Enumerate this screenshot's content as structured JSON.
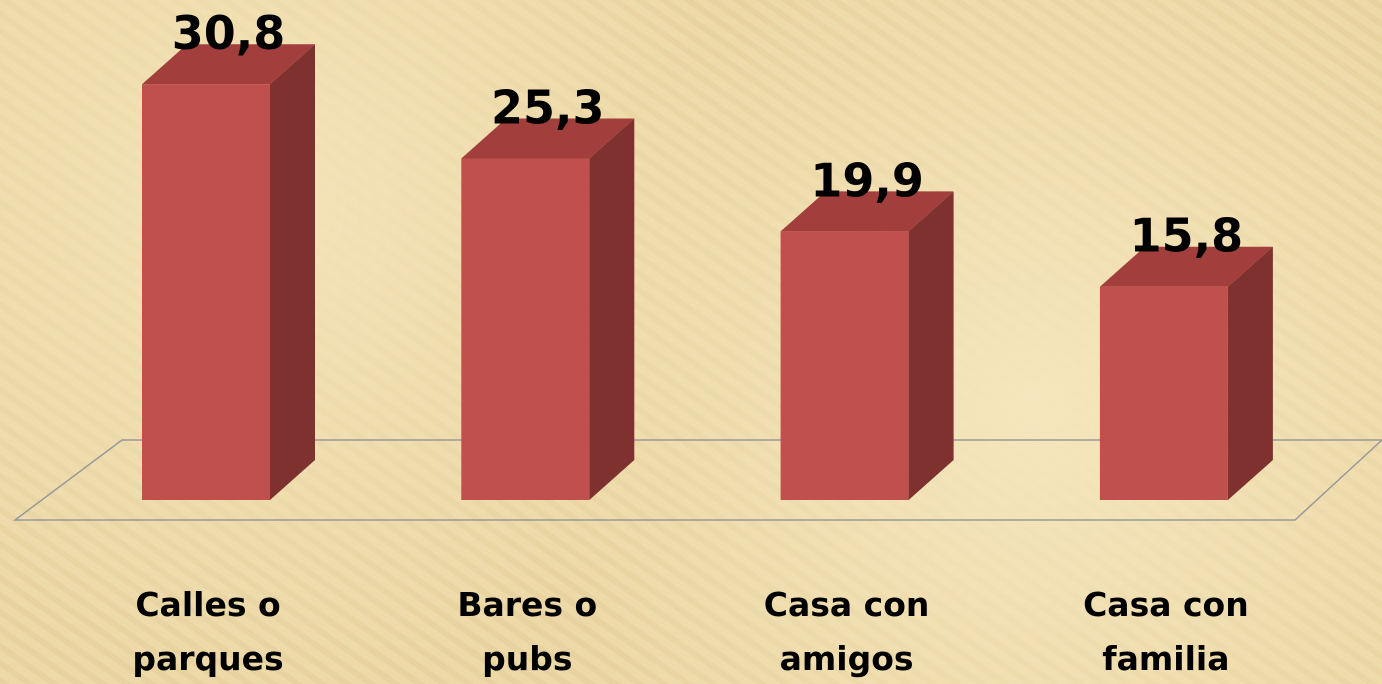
{
  "chart_data": {
    "type": "bar3d",
    "categories": [
      "Calles o parques",
      "Bares o pubs",
      "Casa con amigos",
      "Casa con familia"
    ],
    "values": [
      30.8,
      25.3,
      19.9,
      15.8
    ],
    "value_labels": [
      "30,8",
      "25,3",
      "19,9",
      "15,8"
    ],
    "color": "#c0504d"
  }
}
